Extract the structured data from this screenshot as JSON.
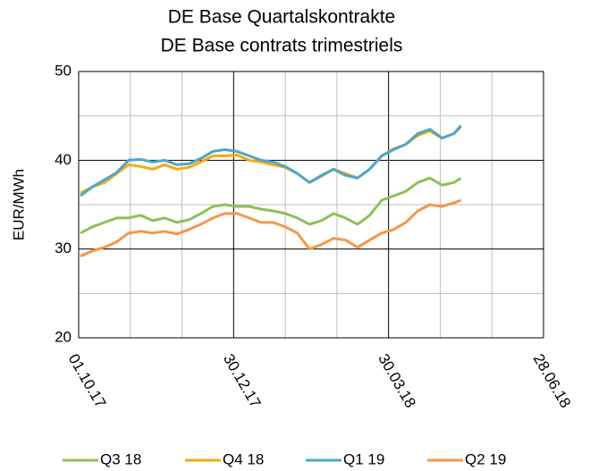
{
  "chart_data": {
    "type": "line",
    "title": "DE Base Quartalskontrakte",
    "subtitle": "DE Base contrats trimestriels",
    "y_label": "EUR/MWh",
    "x": [
      "2017-10-02",
      "2017-10-09",
      "2017-10-16",
      "2017-10-23",
      "2017-10-30",
      "2017-11-06",
      "2017-11-13",
      "2017-11-20",
      "2017-11-27",
      "2017-12-04",
      "2017-12-11",
      "2017-12-18",
      "2017-12-25",
      "2018-01-01",
      "2018-01-08",
      "2018-01-15",
      "2018-01-22",
      "2018-01-29",
      "2018-02-05",
      "2018-02-12",
      "2018-02-19",
      "2018-02-26",
      "2018-03-05",
      "2018-03-12",
      "2018-03-19",
      "2018-03-26",
      "2018-04-02",
      "2018-04-09",
      "2018-04-16",
      "2018-04-23",
      "2018-04-30",
      "2018-05-07",
      "2018-05-11"
    ],
    "series": [
      {
        "name": "Q3 18",
        "color": "#8dc153",
        "values": [
          31.8,
          32.5,
          33.0,
          33.5,
          33.5,
          33.8,
          33.2,
          33.5,
          33.0,
          33.3,
          34.0,
          34.8,
          35.0,
          34.8,
          34.8,
          34.5,
          34.3,
          34.0,
          33.5,
          32.8,
          33.2,
          34.0,
          33.5,
          32.8,
          33.8,
          35.5,
          36.0,
          36.5,
          37.5,
          38.0,
          37.2,
          37.5,
          38.0
        ]
      },
      {
        "name": "Q4 18",
        "color": "#f7a90c",
        "values": [
          36.3,
          37.0,
          37.5,
          38.5,
          39.5,
          39.3,
          39.0,
          39.5,
          39.0,
          39.2,
          39.8,
          40.5,
          40.5,
          40.6,
          40.0,
          39.8,
          39.5,
          39.2,
          38.5,
          37.5,
          38.2,
          39.0,
          38.5,
          38.0,
          39.0,
          40.5,
          41.3,
          41.8,
          42.8,
          43.3,
          42.5,
          43.0,
          43.8
        ]
      },
      {
        "name": "Q1 19",
        "color": "#4ba7c8",
        "values": [
          36.0,
          37.0,
          37.8,
          38.6,
          40.0,
          40.1,
          39.8,
          40.0,
          39.5,
          39.6,
          40.2,
          41.0,
          41.2,
          41.0,
          40.5,
          40.0,
          39.8,
          39.3,
          38.5,
          37.5,
          38.3,
          39.0,
          38.3,
          38.0,
          39.0,
          40.5,
          41.2,
          41.8,
          43.0,
          43.5,
          42.5,
          43.0,
          43.9
        ]
      },
      {
        "name": "Q2 19",
        "color": "#f79646",
        "values": [
          29.2,
          29.8,
          30.2,
          30.8,
          31.8,
          32.0,
          31.8,
          32.0,
          31.7,
          32.2,
          32.8,
          33.5,
          34.0,
          34.0,
          33.5,
          33.0,
          33.0,
          32.5,
          31.8,
          30.0,
          30.5,
          31.2,
          31.0,
          30.2,
          31.0,
          31.8,
          32.2,
          33.0,
          34.3,
          35.0,
          34.8,
          35.2,
          35.5
        ]
      }
    ],
    "xlim": [
      "2017-10-01",
      "2018-06-28"
    ],
    "xticks": [
      {
        "value": "2017-10-01",
        "label": "01.10.17"
      },
      {
        "value": "2017-12-30",
        "label": "30.12.17"
      },
      {
        "value": "2018-03-30",
        "label": "30.03.18"
      },
      {
        "value": "2018-06-28",
        "label": "28.06.18"
      }
    ],
    "xticks_minor": [
      "2017-10-31",
      "2017-11-30",
      "2018-01-29",
      "2018-02-28",
      "2018-04-29",
      "2018-05-29"
    ],
    "ylim": [
      20,
      50
    ],
    "yticks": [
      20,
      30,
      40,
      50
    ],
    "yticks_minor": [
      25,
      35,
      45
    ],
    "grid": true,
    "legend": "bottom"
  }
}
